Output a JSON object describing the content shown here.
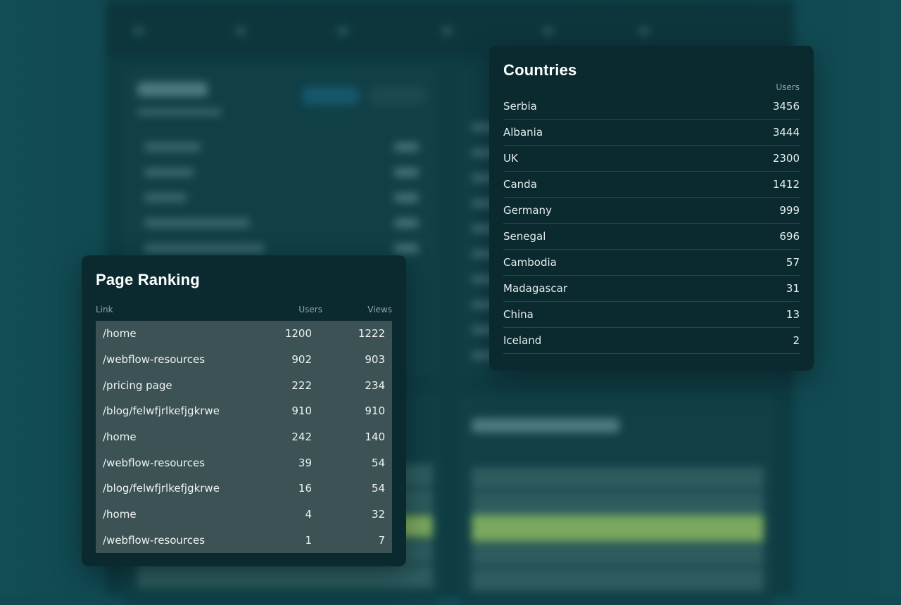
{
  "countries": {
    "title": "Countries",
    "users_label": "Users",
    "rows": [
      {
        "name": "Serbia",
        "users": "3456"
      },
      {
        "name": "Albania",
        "users": "3444"
      },
      {
        "name": "UK",
        "users": "2300"
      },
      {
        "name": "Canda",
        "users": "1412"
      },
      {
        "name": "Germany",
        "users": "999"
      },
      {
        "name": "Senegal",
        "users": "696"
      },
      {
        "name": "Cambodia",
        "users": "57"
      },
      {
        "name": "Madagascar",
        "users": "31"
      },
      {
        "name": "China",
        "users": "13"
      },
      {
        "name": "Iceland",
        "users": "2"
      }
    ]
  },
  "page_ranking": {
    "title": "Page Ranking",
    "columns": {
      "link": "Link",
      "users": "Users",
      "views": "Views"
    },
    "rows": [
      {
        "link": "/home",
        "users": "1200",
        "views": "1222"
      },
      {
        "link": "/webflow-resources",
        "users": "902",
        "views": "903"
      },
      {
        "link": "/pricing page",
        "users": "222",
        "views": "234"
      },
      {
        "link": "/blog/felwfjrlkefjgkrwe",
        "users": "910",
        "views": "910"
      },
      {
        "link": "/home",
        "users": "242",
        "views": "140"
      },
      {
        "link": "/webflow-resources",
        "users": "39",
        "views": "54"
      },
      {
        "link": "/blog/felwfjrlkefjgkrwe",
        "users": "16",
        "views": "54"
      },
      {
        "link": "/home",
        "users": "4",
        "views": "32"
      },
      {
        "link": "/webflow-resources",
        "users": "1",
        "views": "7"
      }
    ]
  },
  "colors": {
    "background": "#114a52",
    "card": "#0b2a2f",
    "table_highlight": "#3c5254",
    "divider": "#1f4a50",
    "accent_green": "#7aa85e"
  }
}
